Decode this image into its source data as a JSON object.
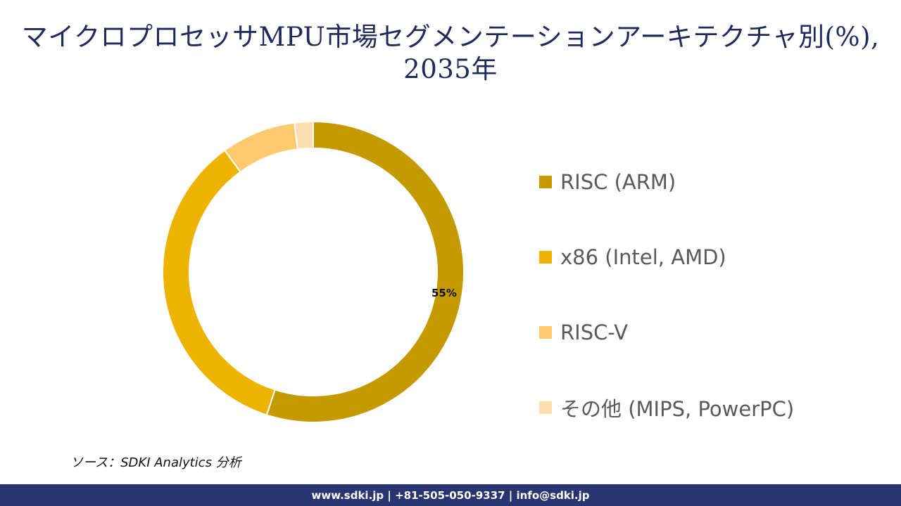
{
  "title": {
    "line1": "マイクロプロセッサMPU市場セグメンテーションアーキテクチャ別(%),",
    "line2": "2035年"
  },
  "chart_data": {
    "type": "pie",
    "subtype": "donut",
    "title": "マイクロプロセッサMPU市場セグメンテーションアーキテクチャ別(%), 2035年",
    "categories": [
      "RISC (ARM)",
      "x86 (Intel, AMD)",
      "RISC-V",
      "その他 (MIPS, PowerPC)"
    ],
    "values": [
      55,
      35,
      8,
      2
    ],
    "colors": [
      "#c49a00",
      "#eeb300",
      "#fcca6c",
      "#fddeae"
    ],
    "data_labels": [
      {
        "category": "RISC (ARM)",
        "text": "55%"
      }
    ],
    "legend_position": "right",
    "start_angle": 0,
    "direction": "clockwise"
  },
  "data_label": "55%",
  "legend": [
    {
      "label": "RISC (ARM)",
      "color": "#c49a00"
    },
    {
      "label": "x86 (Intel, AMD)",
      "color": "#eeb300"
    },
    {
      "label": "RISC-V",
      "color": "#fcca6c"
    },
    {
      "label": "その他 (MIPS, PowerPC)",
      "color": "#fddeae"
    }
  ],
  "source": "ソース：SDKI Analytics 分析",
  "footer": "www.sdki.jp | +81-505-050-9337 | info@sdki.jp"
}
